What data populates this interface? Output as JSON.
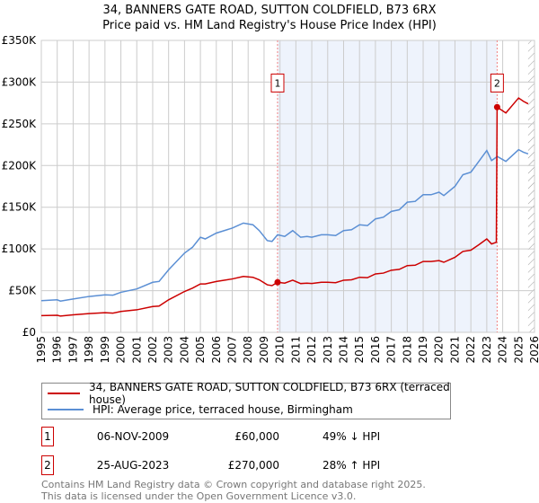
{
  "chart_data": {
    "type": "line",
    "title": "34, BANNERS GATE ROAD, SUTTON COLDFIELD, B73 6RX",
    "subtitle": "Price paid vs. HM Land Registry's House Price Index (HPI)",
    "xlim": [
      1995,
      2026
    ],
    "ylim": [
      0,
      350000
    ],
    "x_ticks": [
      "1995",
      "1996",
      "1997",
      "1998",
      "1999",
      "2000",
      "2001",
      "2002",
      "2003",
      "2004",
      "2005",
      "2006",
      "2007",
      "2008",
      "2009",
      "2010",
      "2011",
      "2012",
      "2013",
      "2014",
      "2015",
      "2016",
      "2017",
      "2018",
      "2019",
      "2020",
      "2021",
      "2022",
      "2023",
      "2024",
      "2025",
      "2026"
    ],
    "y_ticks": [
      {
        "v": 0,
        "label": "£0"
      },
      {
        "v": 50000,
        "label": "£50K"
      },
      {
        "v": 100000,
        "label": "£100K"
      },
      {
        "v": 150000,
        "label": "£150K"
      },
      {
        "v": 200000,
        "label": "£200K"
      },
      {
        "v": 250000,
        "label": "£250K"
      },
      {
        "v": 300000,
        "label": "£300K"
      },
      {
        "v": 350000,
        "label": "£350K"
      }
    ],
    "grid": true,
    "shaded_range": [
      2009.85,
      2023.65
    ],
    "forecast_hatch_from": 2025.6,
    "x": [
      1995.0,
      1996.0,
      1996.2,
      1997.0,
      1998.0,
      1999.0,
      1999.5,
      2000.0,
      2001.0,
      2002.0,
      2002.4,
      2003.0,
      2004.0,
      2004.5,
      2005.0,
      2005.3,
      2006.0,
      2007.0,
      2007.7,
      2008.3,
      2008.7,
      2009.2,
      2009.5,
      2009.85,
      2010.3,
      2010.8,
      2011.3,
      2011.7,
      2012.0,
      2012.6,
      2013.0,
      2013.5,
      2014.0,
      2014.5,
      2015.0,
      2015.5,
      2016.0,
      2016.5,
      2017.0,
      2017.5,
      2018.0,
      2018.5,
      2019.0,
      2019.5,
      2020.0,
      2020.3,
      2021.0,
      2021.5,
      2022.0,
      2022.5,
      2023.0,
      2023.3,
      2023.6,
      2023.65,
      2024.2,
      2025.0,
      2025.3,
      2025.6
    ],
    "series": [
      {
        "name": "34, BANNERS GATE ROAD, SUTTON COLDFIELD, B73 6RX (terraced house)",
        "color": "#cc0000",
        "values": [
          20000,
          20500,
          19500,
          21000,
          22500,
          23500,
          23000,
          25000,
          27000,
          31000,
          31500,
          39000,
          49000,
          53000,
          58000,
          58000,
          61000,
          64000,
          67000,
          66000,
          63000,
          57000,
          56000,
          60000,
          59000,
          62500,
          58500,
          59000,
          58500,
          60000,
          60000,
          59500,
          62500,
          63000,
          66000,
          65500,
          70000,
          71000,
          74500,
          75500,
          80000,
          80500,
          85000,
          85000,
          86000,
          84000,
          90000,
          97000,
          98500,
          105000,
          112000,
          106000,
          108000,
          270000,
          263000,
          281000,
          277000,
          274000
        ]
      },
      {
        "name": "HPI: Average price, terraced house, Birmingham",
        "color": "#5b8fd4",
        "values": [
          38000,
          39000,
          37500,
          40000,
          43000,
          45000,
          44500,
          48000,
          52000,
          60000,
          61000,
          75000,
          95000,
          102000,
          114000,
          112000,
          119000,
          125000,
          131000,
          129000,
          122000,
          110000,
          109000,
          117000,
          115000,
          122000,
          114000,
          115000,
          114000,
          117000,
          117000,
          116000,
          122000,
          123000,
          129000,
          128000,
          136000,
          138000,
          145000,
          147000,
          156000,
          157000,
          165000,
          165000,
          168000,
          164000,
          175000,
          189000,
          192000,
          205000,
          218000,
          206000,
          210000,
          211000,
          205000,
          219000,
          216000,
          214000
        ]
      }
    ],
    "sales": [
      {
        "label": "1",
        "x": 2009.85,
        "price": 60000
      },
      {
        "label": "2",
        "x": 2023.65,
        "price": 270000
      }
    ]
  },
  "legend": {
    "property": "34, BANNERS GATE ROAD, SUTTON COLDFIELD, B73 6RX (terraced house)",
    "hpi": "HPI: Average price, terraced house, Birmingham"
  },
  "transactions": [
    {
      "num": "1",
      "date": "06-NOV-2009",
      "price": "£60,000",
      "hpi": "49% ↓ HPI"
    },
    {
      "num": "2",
      "date": "25-AUG-2023",
      "price": "£270,000",
      "hpi": "28% ↑ HPI"
    }
  ],
  "footer": {
    "line1": "Contains HM Land Registry data © Crown copyright and database right 2025.",
    "line2": "This data is licensed under the Open Government Licence v3.0."
  }
}
